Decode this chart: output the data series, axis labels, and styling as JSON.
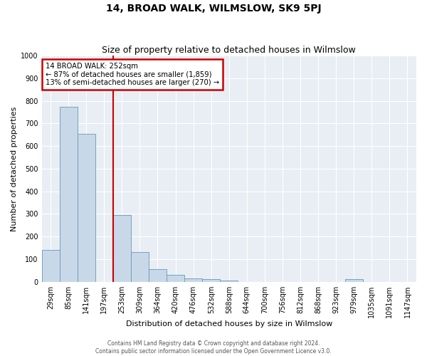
{
  "title": "14, BROAD WALK, WILMSLOW, SK9 5PJ",
  "subtitle": "Size of property relative to detached houses in Wilmslow",
  "xlabel": "Distribution of detached houses by size in Wilmslow",
  "ylabel": "Number of detached properties",
  "bin_labels": [
    "29sqm",
    "85sqm",
    "141sqm",
    "197sqm",
    "253sqm",
    "309sqm",
    "364sqm",
    "420sqm",
    "476sqm",
    "532sqm",
    "588sqm",
    "644sqm",
    "700sqm",
    "756sqm",
    "812sqm",
    "868sqm",
    "923sqm",
    "979sqm",
    "1035sqm",
    "1091sqm",
    "1147sqm"
  ],
  "bar_heights": [
    140,
    775,
    655,
    0,
    295,
    130,
    55,
    30,
    15,
    10,
    5,
    0,
    0,
    0,
    0,
    0,
    0,
    10,
    0,
    0,
    0
  ],
  "bar_color": "#c8d8e8",
  "bar_edge_color": "#6699bb",
  "vline_color": "#cc0000",
  "vline_bin_index": 4,
  "annotation_title": "14 BROAD WALK: 252sqm",
  "annotation_line1": "← 87% of detached houses are smaller (1,859)",
  "annotation_line2": "13% of semi-detached houses are larger (270) →",
  "annotation_box_color": "#cc0000",
  "ylim": [
    0,
    1000
  ],
  "yticks": [
    0,
    100,
    200,
    300,
    400,
    500,
    600,
    700,
    800,
    900,
    1000
  ],
  "footer1": "Contains HM Land Registry data © Crown copyright and database right 2024.",
  "footer2": "Contains public sector information licensed under the Open Government Licence v3.0.",
  "background_color": "#e8eef4",
  "title_fontsize": 10,
  "subtitle_fontsize": 9,
  "xlabel_fontsize": 8,
  "ylabel_fontsize": 8,
  "tick_fontsize": 7,
  "footer_fontsize": 5.5
}
